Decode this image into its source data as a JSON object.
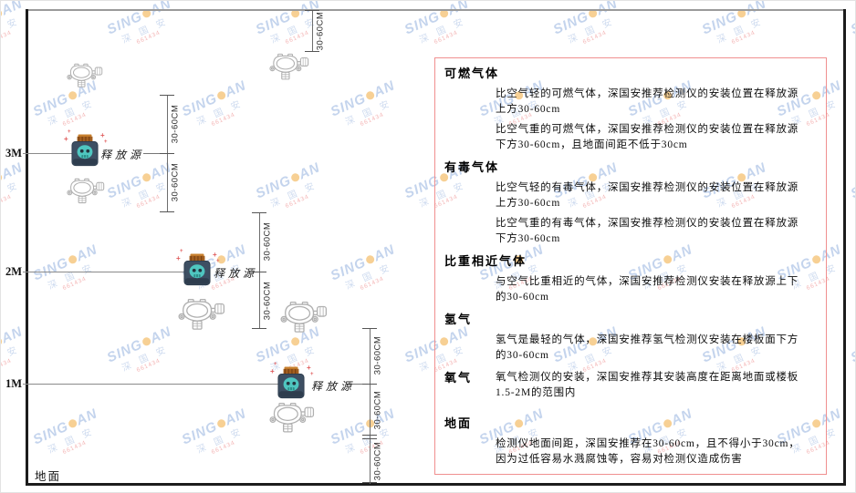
{
  "watermark": {
    "brand_left": "SING",
    "brand_right": "AN",
    "cn": "深 国 安",
    "red": "661434"
  },
  "diagram": {
    "levels": [
      {
        "label": "3M"
      },
      {
        "label": "2M"
      },
      {
        "label": "1M"
      }
    ],
    "ground_label": "地面",
    "source_label": "释放源",
    "dim_label": "30-60CM"
  },
  "panel": {
    "sections": [
      {
        "heading": "可燃气体",
        "inline": false,
        "paragraphs": [
          "比空气轻的可燃气体，深国安推荐检测仪的安装位置在释放源上方30-60cm",
          "比空气重的可燃气体，深国安推荐检测仪的安装位置在释放源下方30-60cm，且地面间距不低于30cm"
        ]
      },
      {
        "heading": "有毒气体",
        "inline": false,
        "paragraphs": [
          "比空气轻的有毒气体，深国安推荐检测仪的安装位置在释放源上方30-60cm",
          "比空气重的有毒气体，深国安推荐检测仪的安装位置在释放源下方30-60cm"
        ]
      },
      {
        "heading": "比重相近气体",
        "inline": false,
        "paragraphs": [
          "与空气比重相近的气体，深国安推荐检测仪安装在释放源上下的30-60cm"
        ]
      },
      {
        "heading": "氢气",
        "inline": false,
        "paragraphs": [
          "氢气是最轻的气体，深国安推荐氢气检测仪安装在楼板面下方的30-60cm"
        ]
      },
      {
        "heading": "氧气",
        "inline": true,
        "paragraphs": [
          "氧气检测仪的安装，深国安推荐其安装高度在距离地面或楼板1.5-2M的范围内"
        ]
      },
      {
        "heading": "地面",
        "inline": false,
        "paragraphs": [
          "检测仪地面间距，深国安推荐在30-60cm，且不得小于30cm，因为过低容易水溅腐蚀等，容易对检测仪造成伤害"
        ]
      }
    ]
  }
}
